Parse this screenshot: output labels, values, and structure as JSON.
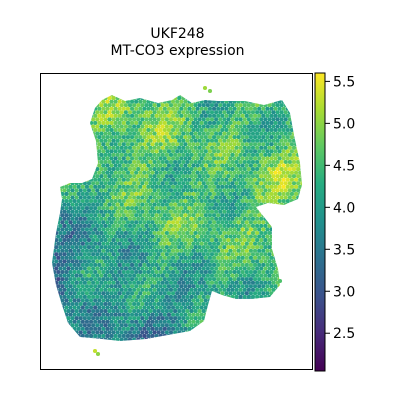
{
  "header": {
    "title": "UKF248",
    "subtitle": "MT-CO3 expression"
  },
  "chart_data": {
    "type": "scatter",
    "title": "UKF248",
    "subtitle": "MT-CO3 expression",
    "colormap": "viridis",
    "color_range": [
      2.05,
      5.6
    ],
    "colorbar_ticks": [
      {
        "value": 2.5,
        "label": "2.5"
      },
      {
        "value": 3.0,
        "label": "3.0"
      },
      {
        "value": 3.5,
        "label": "3.5"
      },
      {
        "value": 4.0,
        "label": "4.0"
      },
      {
        "value": 4.5,
        "label": "4.5"
      },
      {
        "value": 5.0,
        "label": "5.0"
      },
      {
        "value": 5.5,
        "label": "5.5"
      }
    ],
    "axes_visible": false,
    "grid": false,
    "legend": "colorbar-right",
    "spot_grid": "hexagonal spatial transcriptomics spots",
    "regional_expression": [
      {
        "region": "upper-right lobe",
        "value": 4.4
      },
      {
        "region": "upper-left lobe",
        "value": 4.8
      },
      {
        "region": "central band",
        "value": 4.6
      },
      {
        "region": "lower-left lobe",
        "value": 4.1
      },
      {
        "region": "left edge",
        "value": 3.2
      },
      {
        "region": "right extension",
        "value": 4.9
      },
      {
        "region": "bottom edge",
        "value": 3.6
      }
    ]
  }
}
